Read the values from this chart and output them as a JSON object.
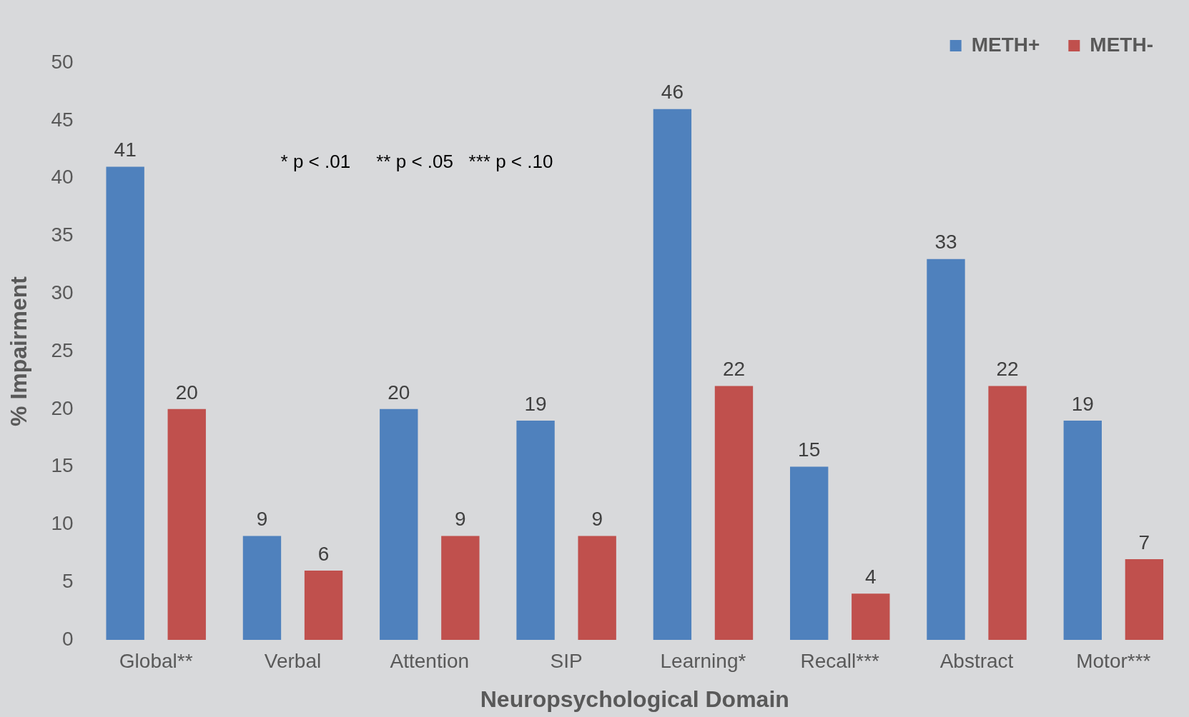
{
  "chart_data": {
    "type": "bar",
    "xlabel": "Neuropsychological Domain",
    "ylabel": "% Impairment",
    "categories": [
      "Global**",
      "Verbal",
      "Attention",
      "SIP",
      "Learning*",
      "Recall***",
      "Abstract",
      "Motor***"
    ],
    "series": [
      {
        "name": "METH+",
        "color": "#4f81bd",
        "values": [
          41,
          9,
          20,
          19,
          46,
          15,
          33,
          19
        ]
      },
      {
        "name": "METH-",
        "color": "#c0504d",
        "values": [
          20,
          6,
          9,
          9,
          22,
          4,
          22,
          7
        ]
      }
    ],
    "ylim": [
      0,
      50
    ],
    "yticks": [
      0,
      5,
      10,
      15,
      20,
      25,
      30,
      35,
      40,
      45,
      50
    ],
    "grid": false,
    "legend": "top right",
    "data_labels": true,
    "annotations": [
      "* p < .01     ** p < .05   *** p < .10"
    ]
  }
}
